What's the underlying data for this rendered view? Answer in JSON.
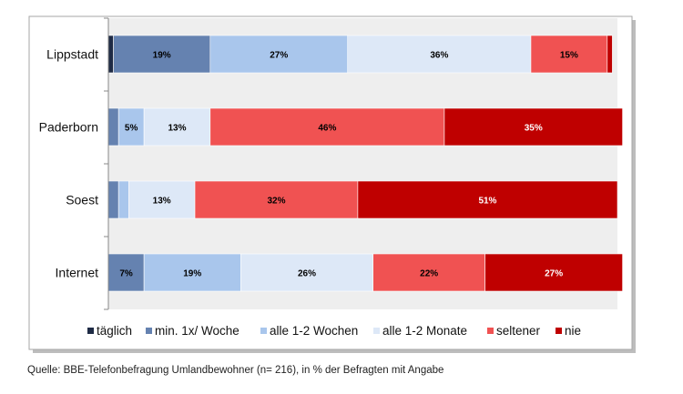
{
  "chart_data": {
    "type": "bar",
    "orientation": "horizontal",
    "stacked": true,
    "normalized_percent": true,
    "categories": [
      "Lippstadt",
      "Paderborn",
      "Soest",
      "Internet"
    ],
    "series": [
      {
        "name": "täglich",
        "color": "#1f2b45",
        "values": [
          1,
          0,
          0,
          0
        ],
        "labels": [
          "",
          "",
          "",
          ""
        ]
      },
      {
        "name": "min. 1x/ Woche",
        "color": "#6582b0",
        "values": [
          19,
          2,
          2,
          7
        ],
        "labels": [
          "19%",
          "",
          "",
          "7%"
        ]
      },
      {
        "name": "alle 1-2 Wochen",
        "color": "#a9c6ec",
        "values": [
          27,
          5,
          2,
          19
        ],
        "labels": [
          "27%",
          "5%",
          "",
          "19%"
        ]
      },
      {
        "name": "alle 1-2 Monate",
        "color": "#dde8f7",
        "values": [
          36,
          13,
          13,
          26
        ],
        "labels": [
          "36%",
          "13%",
          "13%",
          "26%"
        ]
      },
      {
        "name": "seltener",
        "color": "#f05252",
        "values": [
          15,
          46,
          32,
          22
        ],
        "labels": [
          "15%",
          "46%",
          "32%",
          "22%"
        ]
      },
      {
        "name": "nie",
        "color": "#bf0000",
        "values": [
          1,
          35,
          51,
          27
        ],
        "labels": [
          "",
          "35%",
          "51%",
          "27%"
        ]
      }
    ],
    "label_colors": [
      "#ffffff",
      "#000000",
      "#000000",
      "#000000",
      "#000000",
      "#ffffff"
    ],
    "xlim": [
      0,
      100
    ],
    "grid": false,
    "legend_position": "bottom"
  },
  "source_note": "Quelle: BBE-Telefonbefragung Umlandbewohner (n= 216), in % der Befragten mit Angabe"
}
